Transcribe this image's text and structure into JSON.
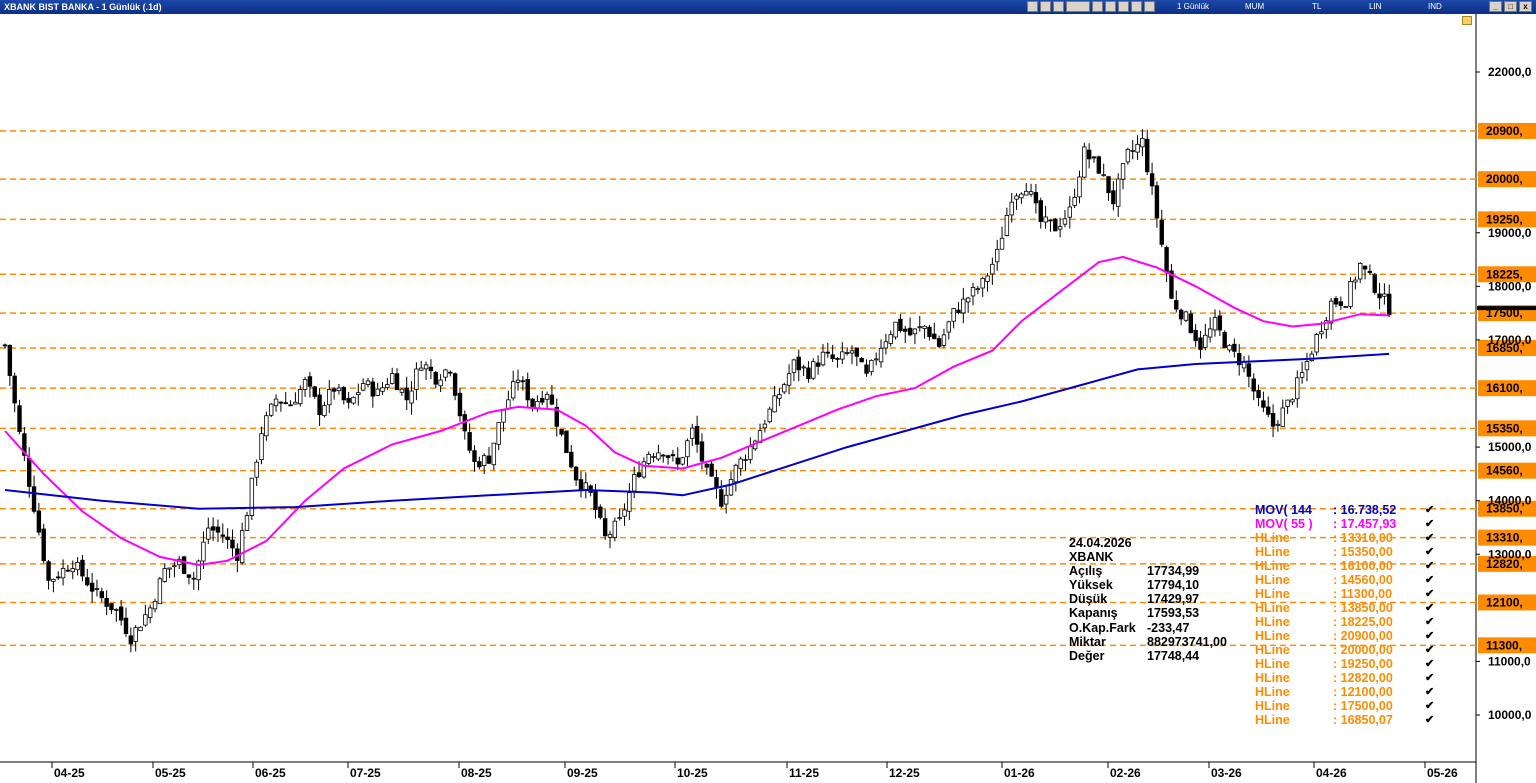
{
  "window": {
    "title": "XBANK BIST BANKA - 1 Günlük (.1d)",
    "menus": [
      "1 Günlük",
      "MUM",
      "TL",
      "LIN",
      "IND"
    ],
    "controls": [
      "_",
      "□",
      "x"
    ]
  },
  "info_panel": {
    "date": "24.04.2026",
    "symbol": "XBANK",
    "rows": [
      {
        "label": "Açılış",
        "value": "17734,99"
      },
      {
        "label": "Yüksek",
        "value": "17794,10"
      },
      {
        "label": "Düşük",
        "value": "17429,97"
      },
      {
        "label": "Kapanış",
        "value": "17593,53"
      },
      {
        "label": "O.Kap.Fark",
        "value": "-233,47"
      },
      {
        "label": "Miktar",
        "value": "882973741,00"
      },
      {
        "label": "Değer",
        "value": "17748,44"
      }
    ]
  },
  "legend": [
    {
      "name": "MOV( 144",
      "value": ": 16.738,52",
      "color": "#0000cc",
      "check": "✔"
    },
    {
      "name": "MOV( 55 )",
      "value": ": 17.457,93",
      "color": "#ff00ff",
      "check": "✔"
    },
    {
      "name": "HLine",
      "value": ": 13310,00",
      "color": "#ff8c00",
      "check": "✔"
    },
    {
      "name": "HLine",
      "value": ": 15350,00",
      "color": "#ff8c00",
      "check": "✔"
    },
    {
      "name": "HLine",
      "value": ": 16100,00",
      "color": "#ff8c00",
      "check": "✔"
    },
    {
      "name": "HLine",
      "value": ": 14560,00",
      "color": "#ff8c00",
      "check": "✔"
    },
    {
      "name": "HLine",
      "value": ": 11300,00",
      "color": "#ff8c00",
      "check": "✔"
    },
    {
      "name": "HLine",
      "value": ": 13850,00",
      "color": "#ff8c00",
      "check": "✔"
    },
    {
      "name": "HLine",
      "value": ": 18225,00",
      "color": "#ff8c00",
      "check": "✔"
    },
    {
      "name": "HLine",
      "value": ": 20900,00",
      "color": "#ff8c00",
      "check": "✔"
    },
    {
      "name": "HLine",
      "value": ": 20000,00",
      "color": "#ff8c00",
      "check": "✔"
    },
    {
      "name": "HLine",
      "value": ": 19250,00",
      "color": "#ff8c00",
      "check": "✔"
    },
    {
      "name": "HLine",
      "value": ": 12820,00",
      "color": "#ff8c00",
      "check": "✔"
    },
    {
      "name": "HLine",
      "value": ": 12100,00",
      "color": "#ff8c00",
      "check": "✔"
    },
    {
      "name": "HLine",
      "value": ": 17500,00",
      "color": "#ff8c00",
      "check": "✔"
    },
    {
      "name": "HLine",
      "value": ": 16850,07",
      "color": "#ff8c00",
      "check": "✔"
    }
  ],
  "chart_data": {
    "type": "candlestick",
    "y_scale": {
      "min": 9500,
      "max": 22700
    },
    "y_ticks": [
      {
        "value": 22000,
        "label": "22000,0"
      },
      {
        "value": 19000,
        "label": "19000,0"
      },
      {
        "value": 18000,
        "label": "18000,0"
      },
      {
        "value": 17000,
        "label": "17000,0"
      },
      {
        "value": 15000,
        "label": "15000,0"
      },
      {
        "value": 14000,
        "label": "14000,0"
      },
      {
        "value": 13000,
        "label": "13000,0"
      },
      {
        "value": 11000,
        "label": "11000,0"
      },
      {
        "value": 10000,
        "label": "10000,0"
      }
    ],
    "hlines": [
      {
        "value": 20900,
        "label": "20900,"
      },
      {
        "value": 20000,
        "label": "20000,"
      },
      {
        "value": 19250,
        "label": "19250,"
      },
      {
        "value": 18225,
        "label": "18225,"
      },
      {
        "value": 17500,
        "label": "17500,"
      },
      {
        "value": 16850,
        "label": "16850,"
      },
      {
        "value": 16100,
        "label": "16100,"
      },
      {
        "value": 15350,
        "label": "15350,"
      },
      {
        "value": 14560,
        "label": "14560,"
      },
      {
        "value": 13850,
        "label": "13850,"
      },
      {
        "value": 13310,
        "label": "13310,"
      },
      {
        "value": 12820,
        "label": "12820,"
      },
      {
        "value": 12100,
        "label": "12100,"
      },
      {
        "value": 11300,
        "label": "11300,"
      }
    ],
    "last_close": 17593.53,
    "x_labels": [
      "04-25",
      "05-25",
      "06-25",
      "07-25",
      "08-25",
      "09-25",
      "10-25",
      "11-25",
      "12-25",
      "01-26",
      "02-26",
      "03-26",
      "04-26",
      "05-26"
    ],
    "price_path": [
      [
        0,
        16900
      ],
      [
        3,
        15250
      ],
      [
        6,
        13900
      ],
      [
        9,
        12500
      ],
      [
        14,
        12850
      ],
      [
        19,
        12250
      ],
      [
        23,
        11950
      ],
      [
        26,
        11450
      ],
      [
        30,
        12000
      ],
      [
        33,
        12700
      ],
      [
        36,
        12850
      ],
      [
        39,
        12550
      ],
      [
        42,
        13500
      ],
      [
        45,
        13350
      ],
      [
        48,
        13000
      ],
      [
        50,
        13800
      ],
      [
        53,
        15300
      ],
      [
        56,
        15900
      ],
      [
        59,
        15800
      ],
      [
        62,
        16200
      ],
      [
        65,
        15700
      ],
      [
        68,
        16100
      ],
      [
        71,
        15750
      ],
      [
        74,
        16200
      ],
      [
        77,
        16000
      ],
      [
        80,
        16350
      ],
      [
        83,
        15900
      ],
      [
        86,
        16600
      ],
      [
        89,
        16300
      ],
      [
        92,
        16500
      ],
      [
        95,
        15200
      ],
      [
        97,
        14700
      ],
      [
        100,
        14800
      ],
      [
        103,
        15700
      ],
      [
        106,
        16300
      ],
      [
        109,
        15800
      ],
      [
        112,
        16050
      ],
      [
        115,
        15200
      ],
      [
        118,
        14450
      ],
      [
        121,
        14100
      ],
      [
        124,
        13300
      ],
      [
        127,
        13600
      ],
      [
        130,
        14400
      ],
      [
        133,
        14900
      ],
      [
        136,
        14950
      ],
      [
        139,
        14650
      ],
      [
        142,
        15300
      ],
      [
        145,
        14500
      ],
      [
        148,
        14000
      ],
      [
        151,
        14600
      ],
      [
        154,
        15000
      ],
      [
        157,
        15500
      ],
      [
        160,
        16000
      ],
      [
        163,
        16550
      ],
      [
        166,
        16400
      ],
      [
        169,
        16700
      ],
      [
        172,
        16600
      ],
      [
        175,
        16800
      ],
      [
        178,
        16300
      ],
      [
        181,
        16900
      ],
      [
        184,
        17300
      ],
      [
        187,
        17100
      ],
      [
        190,
        17250
      ],
      [
        193,
        16900
      ],
      [
        196,
        17500
      ],
      [
        199,
        17800
      ],
      [
        202,
        18050
      ],
      [
        205,
        18600
      ],
      [
        208,
        19700
      ],
      [
        211,
        19900
      ],
      [
        214,
        19200
      ],
      [
        217,
        19100
      ],
      [
        220,
        19400
      ],
      [
        223,
        20500
      ],
      [
        226,
        20200
      ],
      [
        229,
        19600
      ],
      [
        232,
        20450
      ],
      [
        235,
        20700
      ],
      [
        238,
        19300
      ],
      [
        241,
        17750
      ],
      [
        244,
        17400
      ],
      [
        247,
        16900
      ],
      [
        250,
        17300
      ],
      [
        253,
        16800
      ],
      [
        256,
        16550
      ],
      [
        259,
        15800
      ],
      [
        262,
        15400
      ],
      [
        265,
        15800
      ],
      [
        268,
        16350
      ],
      [
        271,
        17050
      ],
      [
        274,
        17700
      ],
      [
        277,
        17750
      ],
      [
        280,
        18400
      ],
      [
        283,
        18000
      ],
      [
        286,
        17594
      ]
    ],
    "ma55_path": [
      [
        0,
        15300
      ],
      [
        8,
        14500
      ],
      [
        16,
        13800
      ],
      [
        24,
        13300
      ],
      [
        32,
        12950
      ],
      [
        40,
        12800
      ],
      [
        46,
        12880
      ],
      [
        54,
        13250
      ],
      [
        62,
        14000
      ],
      [
        70,
        14600
      ],
      [
        80,
        15050
      ],
      [
        90,
        15300
      ],
      [
        100,
        15650
      ],
      [
        106,
        15750
      ],
      [
        114,
        15700
      ],
      [
        120,
        15400
      ],
      [
        126,
        14900
      ],
      [
        132,
        14650
      ],
      [
        140,
        14600
      ],
      [
        148,
        14800
      ],
      [
        156,
        15100
      ],
      [
        164,
        15400
      ],
      [
        172,
        15700
      ],
      [
        180,
        15950
      ],
      [
        188,
        16100
      ],
      [
        196,
        16500
      ],
      [
        204,
        16800
      ],
      [
        210,
        17350
      ],
      [
        218,
        17900
      ],
      [
        226,
        18450
      ],
      [
        231,
        18550
      ],
      [
        238,
        18350
      ],
      [
        246,
        18000
      ],
      [
        254,
        17600
      ],
      [
        260,
        17350
      ],
      [
        266,
        17250
      ],
      [
        272,
        17300
      ],
      [
        280,
        17480
      ],
      [
        286,
        17458
      ]
    ],
    "ma144_path": [
      [
        0,
        14200
      ],
      [
        20,
        14000
      ],
      [
        40,
        13850
      ],
      [
        60,
        13880
      ],
      [
        80,
        14000
      ],
      [
        100,
        14100
      ],
      [
        120,
        14200
      ],
      [
        134,
        14150
      ],
      [
        140,
        14100
      ],
      [
        150,
        14300
      ],
      [
        162,
        14650
      ],
      [
        174,
        15000
      ],
      [
        186,
        15300
      ],
      [
        198,
        15600
      ],
      [
        210,
        15850
      ],
      [
        222,
        16150
      ],
      [
        234,
        16450
      ],
      [
        246,
        16550
      ],
      [
        258,
        16600
      ],
      [
        270,
        16650
      ],
      [
        286,
        16739
      ]
    ]
  }
}
